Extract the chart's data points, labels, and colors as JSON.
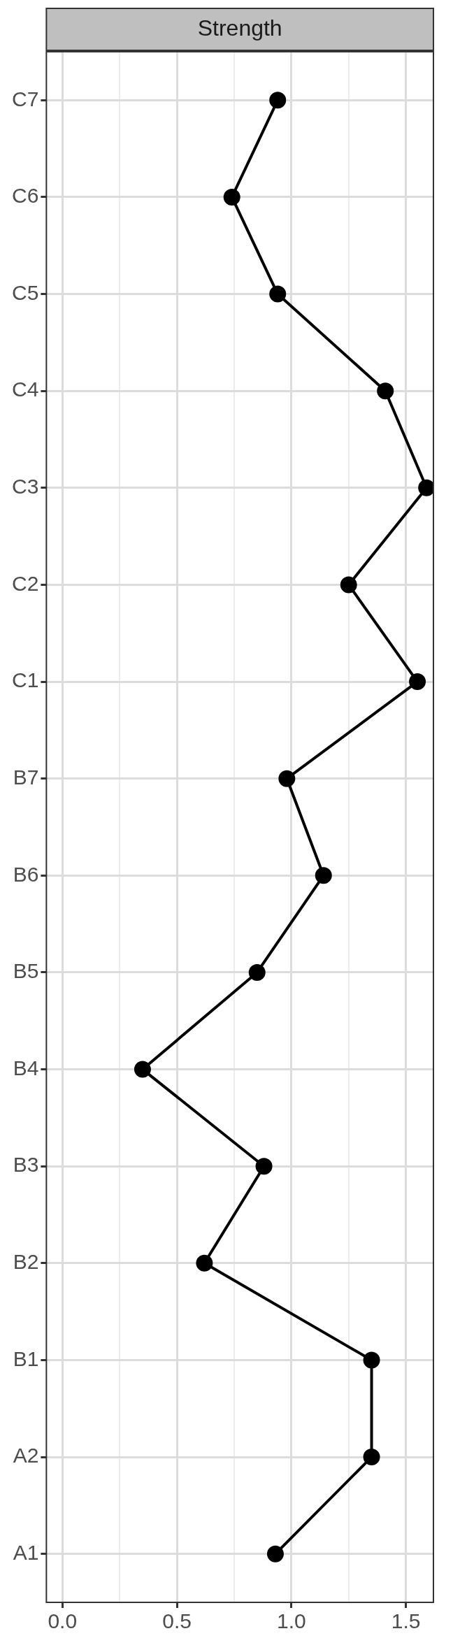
{
  "chart_data": {
    "type": "line",
    "orientation": "horizontal",
    "title": "Strength",
    "categories": [
      "C7",
      "C6",
      "C5",
      "C4",
      "C3",
      "C2",
      "C1",
      "B7",
      "B6",
      "B5",
      "B4",
      "B3",
      "B2",
      "B1",
      "A2",
      "A1"
    ],
    "values": [
      0.94,
      0.74,
      0.94,
      1.41,
      1.59,
      1.25,
      1.55,
      0.98,
      1.14,
      0.85,
      0.35,
      0.88,
      0.62,
      1.35,
      1.35,
      0.93
    ],
    "color": "#000000",
    "marker": "circle",
    "line_style": "solid",
    "xlim": [
      -0.07,
      1.62
    ],
    "xticks": [
      {
        "value": 0,
        "label": "0.0"
      },
      {
        "value": 0.25,
        "label": null
      },
      {
        "value": 0.5,
        "label": "0.5"
      },
      {
        "value": 0.75,
        "label": null
      },
      {
        "value": 1,
        "label": "1.0"
      },
      {
        "value": 1.25,
        "label": null
      },
      {
        "value": 1.5,
        "label": "1.5"
      }
    ],
    "grid": true,
    "legend": false
  }
}
